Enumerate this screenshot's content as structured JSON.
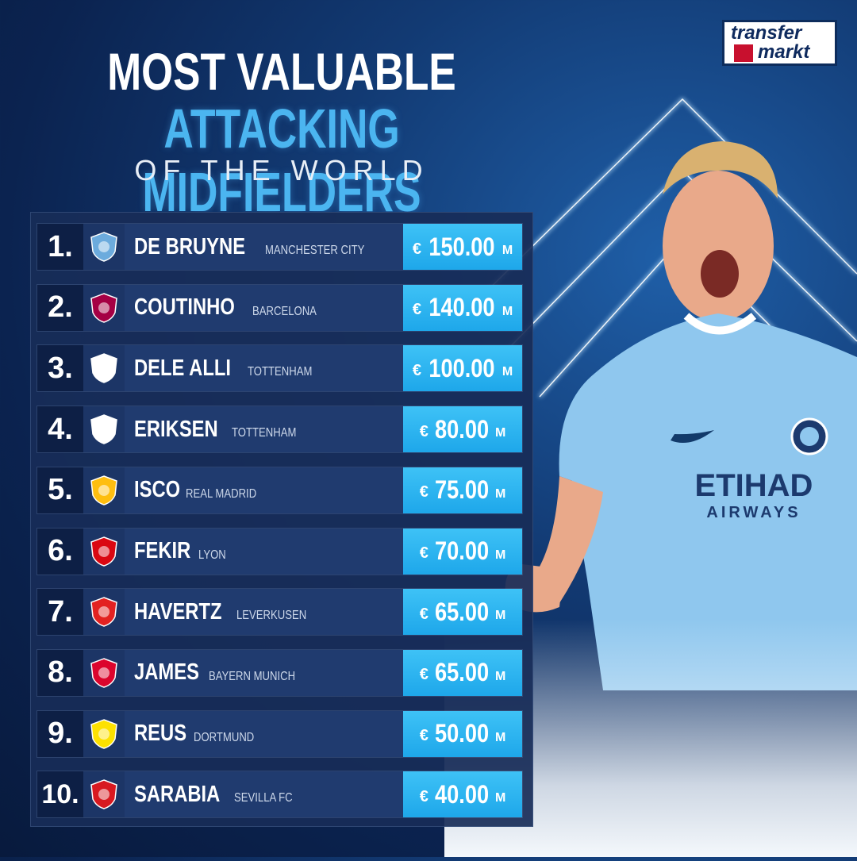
{
  "header": {
    "line1": "MOST VALUABLE",
    "line2": "ATTACKING MIDFIELDERS",
    "line3": "OF THE WORLD"
  },
  "brand": {
    "line1": "transfer",
    "line2": "markt"
  },
  "colors": {
    "accent": "#3ec2f6",
    "title_accent": "#4bb5f0",
    "panel": "#203b6f",
    "rank_bg": "#0d1f45"
  },
  "ranking": [
    {
      "rank": "1.",
      "player": "DE BRUYNE",
      "club": "MANCHESTER CITY",
      "currency": "€",
      "value": "150.00",
      "unit": "M",
      "crest": "man-city-crest-icon",
      "crest_color": "#6cabdd"
    },
    {
      "rank": "2.",
      "player": "COUTINHO",
      "club": "BARCELONA",
      "currency": "€",
      "value": "140.00",
      "unit": "M",
      "crest": "barcelona-crest-icon",
      "crest_color": "#a50044"
    },
    {
      "rank": "3.",
      "player": "DELE ALLI",
      "club": "TOTTENHAM",
      "currency": "€",
      "value": "100.00",
      "unit": "M",
      "crest": "tottenham-crest-icon",
      "crest_color": "#ffffff"
    },
    {
      "rank": "4.",
      "player": "ERIKSEN",
      "club": "TOTTENHAM",
      "currency": "€",
      "value": "80.00",
      "unit": "M",
      "crest": "tottenham-crest-icon",
      "crest_color": "#ffffff"
    },
    {
      "rank": "5.",
      "player": "ISCO",
      "club": "REAL MADRID",
      "currency": "€",
      "value": "75.00",
      "unit": "M",
      "crest": "real-madrid-crest-icon",
      "crest_color": "#febe10"
    },
    {
      "rank": "6.",
      "player": "FEKIR",
      "club": "LYON",
      "currency": "€",
      "value": "70.00",
      "unit": "M",
      "crest": "lyon-crest-icon",
      "crest_color": "#da0812"
    },
    {
      "rank": "7.",
      "player": "HAVERTZ",
      "club": "LEVERKUSEN",
      "currency": "€",
      "value": "65.00",
      "unit": "M",
      "crest": "leverkusen-crest-icon",
      "crest_color": "#e32221"
    },
    {
      "rank": "8.",
      "player": "JAMES",
      "club": "BAYERN MUNICH",
      "currency": "€",
      "value": "65.00",
      "unit": "M",
      "crest": "bayern-crest-icon",
      "crest_color": "#dc052d"
    },
    {
      "rank": "9.",
      "player": "REUS",
      "club": "DORTMUND",
      "currency": "€",
      "value": "50.00",
      "unit": "M",
      "crest": "dortmund-crest-icon",
      "crest_color": "#fde100"
    },
    {
      "rank": "10.",
      "player": "SARABIA",
      "club": "SEVILLA FC",
      "currency": "€",
      "value": "40.00",
      "unit": "M",
      "crest": "sevilla-crest-icon",
      "crest_color": "#d81920"
    }
  ],
  "photo": {
    "sponsor_line1": "ETIHAD",
    "sponsor_line2": "AIRWAYS",
    "shirt_color": "#8fc7ee"
  }
}
